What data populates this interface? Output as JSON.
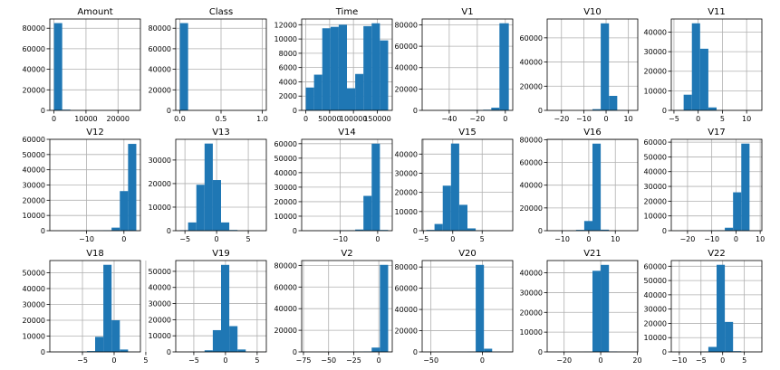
{
  "chart_data": [
    {
      "type": "bar",
      "title": "Amount",
      "bin_edges": [
        0,
        2569,
        5138,
        7707,
        10276,
        12845,
        15414,
        17983,
        20552,
        23121,
        25691
      ],
      "values": [
        85000,
        700,
        50,
        10,
        5,
        2,
        1,
        1,
        1,
        1
      ],
      "xlim": [
        -1300,
        27000
      ],
      "ylim": [
        0,
        89000
      ],
      "xticks": [
        0,
        10000,
        20000
      ],
      "xtick_labels": [
        "0",
        "10000",
        "20000"
      ],
      "yticks": [
        0,
        20000,
        40000,
        60000,
        80000
      ],
      "ytick_labels": [
        "0",
        "20000",
        "40000",
        "60000",
        "80000"
      ]
    },
    {
      "type": "bar",
      "title": "Class",
      "bin_edges": [
        0,
        0.1,
        0.2,
        0.3,
        0.4,
        0.5,
        0.6,
        0.7,
        0.8,
        0.9,
        1.0
      ],
      "values": [
        85000,
        0,
        0,
        0,
        0,
        0,
        0,
        0,
        0,
        200
      ],
      "xlim": [
        -0.05,
        1.05
      ],
      "ylim": [
        0,
        89000
      ],
      "xticks": [
        0,
        0.5,
        1.0
      ],
      "xtick_labels": [
        "0.0",
        "0.5",
        "1.0"
      ],
      "yticks": [
        0,
        20000,
        40000,
        60000,
        80000
      ],
      "ytick_labels": [
        "0",
        "20000",
        "40000",
        "60000",
        "80000"
      ]
    },
    {
      "type": "bar",
      "title": "Time",
      "bin_edges": [
        0,
        17279,
        34558,
        51837,
        69116,
        86395,
        103674,
        120953,
        138232,
        155511,
        172792
      ],
      "values": [
        3200,
        5000,
        11500,
        11700,
        12000,
        3100,
        5100,
        11800,
        12200,
        9800
      ],
      "xlim": [
        -8640,
        181432
      ],
      "ylim": [
        0,
        12800
      ],
      "xticks": [
        0,
        50000,
        100000,
        150000
      ],
      "xtick_labels": [
        "0",
        "50000",
        "100000",
        "150000"
      ],
      "yticks": [
        0,
        2000,
        4000,
        6000,
        8000,
        10000,
        12000
      ],
      "ytick_labels": [
        "0",
        "2000",
        "4000",
        "6000",
        "8000",
        "10000",
        "12000"
      ]
    },
    {
      "type": "bar",
      "title": "V1",
      "bin_edges": [
        -56.4,
        -50.6,
        -44.8,
        -39,
        -33.2,
        -27.4,
        -21.6,
        -15.8,
        -10,
        -4.2,
        2.5
      ],
      "values": [
        5,
        10,
        20,
        50,
        100,
        200,
        300,
        600,
        2500,
        81500
      ],
      "xlim": [
        -59.3,
        5.3
      ],
      "ylim": [
        0,
        85500
      ],
      "xticks": [
        -40,
        -20,
        0
      ],
      "xtick_labels": [
        "−40",
        "−20",
        "0"
      ],
      "yticks": [
        0,
        20000,
        40000,
        60000,
        80000
      ],
      "ytick_labels": [
        "0",
        "20000",
        "40000",
        "60000",
        "80000"
      ]
    },
    {
      "type": "bar",
      "title": "V10",
      "bin_edges": [
        -24.6,
        -20.9,
        -17.2,
        -13.5,
        -9.8,
        -6.1,
        -2.4,
        1.3,
        5,
        8.7,
        12.4
      ],
      "values": [
        5,
        10,
        20,
        50,
        150,
        1000,
        72000,
        12000,
        300,
        10
      ],
      "xlim": [
        -26.4,
        14.2
      ],
      "ylim": [
        0,
        75600
      ],
      "xticks": [
        -20,
        -10,
        0,
        10
      ],
      "xtick_labels": [
        "−20",
        "−10",
        "0",
        "10"
      ],
      "yticks": [
        0,
        20000,
        40000,
        60000
      ],
      "ytick_labels": [
        "0",
        "20000",
        "40000",
        "60000"
      ]
    },
    {
      "type": "bar",
      "title": "V11",
      "bin_edges": [
        -4.7,
        -3.0,
        -1.3,
        0.4,
        2.1,
        3.8,
        5.5,
        7.2,
        8.9,
        10.6,
        12.3
      ],
      "values": [
        100,
        8000,
        44500,
        31500,
        1500,
        50,
        10,
        5,
        2,
        1
      ],
      "xlim": [
        -5.55,
        13.15
      ],
      "ylim": [
        0,
        46700
      ],
      "xticks": [
        -5,
        0,
        5,
        10
      ],
      "xtick_labels": [
        "−5",
        "0",
        "5",
        "10"
      ],
      "yticks": [
        0,
        10000,
        20000,
        30000,
        40000
      ],
      "ytick_labels": [
        "0",
        "10000",
        "20000",
        "30000",
        "40000"
      ]
    },
    {
      "type": "bar",
      "title": "V12",
      "bin_edges": [
        -18.7,
        -16.5,
        -14.3,
        -12.1,
        -9.9,
        -7.7,
        -5.5,
        -3.3,
        -1.1,
        1.1,
        3.3
      ],
      "values": [
        5,
        10,
        20,
        50,
        100,
        200,
        300,
        2000,
        26000,
        57000
      ],
      "xlim": [
        -19.8,
        4.4
      ],
      "ylim": [
        0,
        60000
      ],
      "xticks": [
        -10,
        0
      ],
      "xtick_labels": [
        "−10",
        "0"
      ],
      "yticks": [
        0,
        10000,
        20000,
        30000,
        40000,
        50000,
        60000
      ],
      "ytick_labels": [
        "0",
        "10000",
        "20000",
        "30000",
        "40000",
        "50000",
        "60000"
      ]
    },
    {
      "type": "bar",
      "title": "V13",
      "bin_edges": [
        -5.8,
        -4.5,
        -3.2,
        -1.9,
        -0.6,
        0.7,
        2.0,
        3.3,
        4.6,
        5.9,
        7.2
      ],
      "values": [
        200,
        3500,
        19500,
        37000,
        21500,
        3500,
        300,
        50,
        10,
        5
      ],
      "xlim": [
        -6.45,
        7.85
      ],
      "ylim": [
        0,
        38800
      ],
      "xticks": [
        -5,
        0,
        5
      ],
      "xtick_labels": [
        "−5",
        "0",
        "5"
      ],
      "yticks": [
        0,
        10000,
        20000,
        30000
      ],
      "ytick_labels": [
        "0",
        "10000",
        "20000",
        "30000"
      ]
    },
    {
      "type": "bar",
      "title": "V14",
      "bin_edges": [
        -19.2,
        -17.0,
        -14.8,
        -12.6,
        -10.4,
        -8.2,
        -6.0,
        -3.8,
        -1.6,
        0.6,
        2.8
      ],
      "values": [
        10,
        20,
        50,
        100,
        200,
        300,
        800,
        24000,
        60000,
        500
      ],
      "xlim": [
        -20.3,
        3.9
      ],
      "ylim": [
        0,
        63000
      ],
      "xticks": [
        -10,
        0
      ],
      "xtick_labels": [
        "−10",
        "0"
      ],
      "yticks": [
        0,
        10000,
        20000,
        30000,
        40000,
        50000,
        60000
      ],
      "ytick_labels": [
        "0",
        "10000",
        "20000",
        "30000",
        "40000",
        "50000",
        "60000"
      ]
    },
    {
      "type": "bar",
      "title": "V15",
      "bin_edges": [
        -4.5,
        -3.1,
        -1.7,
        -0.3,
        1.1,
        2.5,
        3.9,
        5.3,
        6.7,
        8.1,
        9.5
      ],
      "values": [
        400,
        3500,
        23500,
        45500,
        13500,
        1200,
        100,
        20,
        5,
        2
      ],
      "xlim": [
        -5.2,
        10.2
      ],
      "ylim": [
        0,
        47700
      ],
      "xticks": [
        -5,
        0,
        5
      ],
      "xtick_labels": [
        "−5",
        "0",
        "5"
      ],
      "yticks": [
        0,
        10000,
        20000,
        30000,
        40000
      ],
      "ytick_labels": [
        "0",
        "10000",
        "20000",
        "30000",
        "40000"
      ]
    },
    {
      "type": "bar",
      "title": "V16",
      "bin_edges": [
        -14.1,
        -11.0,
        -7.9,
        -4.8,
        -1.7,
        1.4,
        4.5,
        7.6,
        10.7,
        13.8,
        16.9
      ],
      "values": [
        10,
        30,
        100,
        700,
        8500,
        76500,
        900,
        50,
        10,
        5
      ],
      "xlim": [
        -15.65,
        18.45
      ],
      "ylim": [
        0,
        80300
      ],
      "xticks": [
        -10,
        0,
        10
      ],
      "xtick_labels": [
        "−10",
        "0",
        "10"
      ],
      "yticks": [
        0,
        20000,
        40000,
        60000,
        80000
      ],
      "ytick_labels": [
        "0",
        "20000",
        "40000",
        "60000",
        "80000"
      ]
    },
    {
      "type": "bar",
      "title": "V17",
      "bin_edges": [
        -25,
        -21.6,
        -18.2,
        -14.8,
        -11.4,
        -8.0,
        -4.6,
        -1.2,
        2.2,
        5.6,
        9.0
      ],
      "values": [
        10,
        20,
        50,
        100,
        200,
        300,
        2000,
        26000,
        59000,
        100
      ],
      "xlim": [
        -26.7,
        10.7
      ],
      "ylim": [
        0,
        61900
      ],
      "xticks": [
        -20,
        -10,
        0,
        10
      ],
      "xtick_labels": [
        "−20",
        "−10",
        "0",
        "10"
      ],
      "yticks": [
        0,
        10000,
        20000,
        30000,
        40000,
        50000,
        60000
      ],
      "ytick_labels": [
        "0",
        "10000",
        "20000",
        "30000",
        "40000",
        "50000",
        "60000"
      ]
    },
    {
      "type": "bar",
      "title": "V18",
      "bin_edges": [
        -9.5,
        -8.2,
        -6.9,
        -5.6,
        -4.3,
        -3.0,
        -1.7,
        -0.4,
        0.9,
        2.2,
        3.5
      ],
      "values": [
        5,
        10,
        30,
        100,
        500,
        9500,
        55000,
        20000,
        1500,
        50
      ],
      "xlim": [
        -10.15,
        4.15
      ],
      "ylim": [
        0,
        57700
      ],
      "xticks": [
        -5,
        0,
        5
      ],
      "xtick_labels": [
        "−5",
        "0",
        "5"
      ],
      "yticks": [
        0,
        10000,
        20000,
        30000,
        40000,
        50000
      ],
      "ytick_labels": [
        "0",
        "10000",
        "20000",
        "30000",
        "40000",
        "50000"
      ]
    },
    {
      "type": "bar",
      "title": "V19",
      "bin_edges": [
        -7.2,
        -5.9,
        -4.6,
        -3.3,
        -2.0,
        -0.7,
        0.6,
        1.9,
        3.2,
        4.5,
        5.8
      ],
      "values": [
        5,
        20,
        100,
        1000,
        13500,
        54000,
        16000,
        1500,
        100,
        10
      ],
      "xlim": [
        -7.85,
        6.45
      ],
      "ylim": [
        0,
        56700
      ],
      "xticks": [
        -5,
        0,
        5
      ],
      "xtick_labels": [
        "−5",
        "0",
        "5"
      ],
      "yticks": [
        0,
        10000,
        20000,
        30000,
        40000,
        50000
      ],
      "ytick_labels": [
        "0",
        "10000",
        "20000",
        "30000",
        "40000",
        "50000"
      ]
    },
    {
      "type": "bar",
      "title": "V2",
      "bin_edges": [
        -72.7,
        -64.5,
        -56.3,
        -48.1,
        -39.9,
        -31.7,
        -23.5,
        -15.3,
        -7.1,
        1.1,
        9.3
      ],
      "values": [
        5,
        10,
        20,
        30,
        50,
        100,
        200,
        400,
        4000,
        80500
      ],
      "xlim": [
        -76.8,
        13.4
      ],
      "ylim": [
        0,
        84500
      ],
      "xticks": [
        -75,
        -50,
        -25,
        0
      ],
      "xtick_labels": [
        "−75",
        "−50",
        "−25",
        "0"
      ],
      "yticks": [
        0,
        20000,
        40000,
        60000,
        80000
      ],
      "ytick_labels": [
        "0",
        "20000",
        "40000",
        "60000",
        "80000"
      ]
    },
    {
      "type": "bar",
      "title": "V20",
      "bin_edges": [
        -54.5,
        -46.5,
        -38.5,
        -30.5,
        -22.5,
        -14.5,
        -6.5,
        1.5,
        9.5,
        17.5,
        25.5
      ],
      "values": [
        5,
        10,
        20,
        50,
        100,
        300,
        82000,
        3000,
        100,
        20
      ],
      "xlim": [
        -58.5,
        29.5
      ],
      "ylim": [
        0,
        86100
      ],
      "xticks": [
        -50,
        0
      ],
      "xtick_labels": [
        "−50",
        "0"
      ],
      "yticks": [
        0,
        20000,
        40000,
        60000,
        80000
      ],
      "ytick_labels": [
        "0",
        "20000",
        "40000",
        "60000",
        "80000"
      ]
    },
    {
      "type": "bar",
      "title": "V21",
      "bin_edges": [
        -27,
        -22.5,
        -18,
        -13.5,
        -9,
        -4.5,
        0,
        4.5,
        9,
        13.5,
        18
      ],
      "values": [
        5,
        10,
        20,
        50,
        100,
        41000,
        44000,
        200,
        50,
        10
      ],
      "xlim": [
        -29.25,
        20.25
      ],
      "ylim": [
        0,
        46200
      ],
      "xticks": [
        -20,
        0,
        20
      ],
      "xtick_labels": [
        "−20",
        "0",
        "20"
      ],
      "yticks": [
        0,
        10000,
        20000,
        30000,
        40000
      ],
      "ytick_labels": [
        "0",
        "10000",
        "20000",
        "30000",
        "40000"
      ]
    },
    {
      "type": "bar",
      "title": "V22",
      "bin_edges": [
        -10.9,
        -9.0,
        -7.1,
        -5.2,
        -3.3,
        -1.4,
        0.5,
        2.4,
        4.3,
        6.2,
        8.1
      ],
      "values": [
        5,
        10,
        30,
        200,
        3500,
        61000,
        21000,
        500,
        30,
        5
      ],
      "xlim": [
        -11.85,
        9.05
      ],
      "ylim": [
        0,
        64000
      ],
      "xticks": [
        -10,
        -5,
        0,
        5
      ],
      "xtick_labels": [
        "−10",
        "−5",
        "0",
        "5"
      ],
      "yticks": [
        0,
        10000,
        20000,
        30000,
        40000,
        50000,
        60000
      ],
      "ytick_labels": [
        "0",
        "10000",
        "20000",
        "30000",
        "40000",
        "50000",
        "60000"
      ]
    }
  ],
  "style": {
    "bar_color": "#1f77b4",
    "grid_color": "#b0b0b0",
    "grid": true,
    "layout": "3 rows x 6 columns"
  }
}
